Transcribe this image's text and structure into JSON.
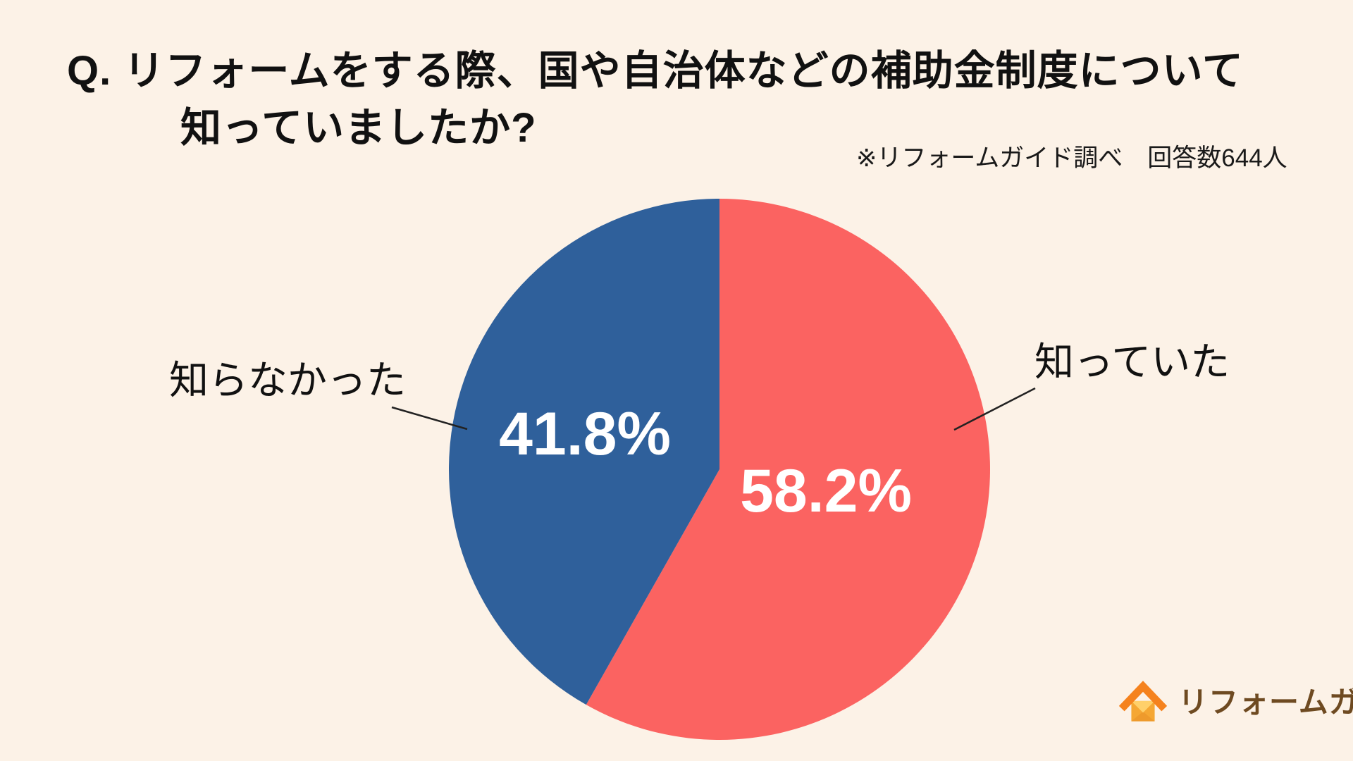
{
  "page": {
    "background_color": "#FCF2E7",
    "text_color": "#111111"
  },
  "title": {
    "line1": "Q. リフォームをする際、国や自治体などの補助金制度について",
    "line2": "知っていましたか?"
  },
  "note": {
    "text": "※リフォームガイド調べ　回答数644人",
    "survey_by": "リフォームガイド調べ",
    "respondents": "回答数644人",
    "respondent_count": 644
  },
  "chart_data": {
    "type": "pie",
    "title": "Q. リフォームをする際、国や自治体などの補助金制度について知っていましたか?",
    "source_note": "※リフォームガイド調べ　回答数644人",
    "unit": "%",
    "start_angle_deg": 0,
    "direction": "clockwise",
    "legend_position": "callout-labels",
    "slices": [
      {
        "label": "知っていた",
        "value": 58.2,
        "display": "58.2%",
        "color": "#FB6361"
      },
      {
        "label": "知らなかった",
        "value": 41.8,
        "display": "41.8%",
        "color": "#2F609B"
      }
    ],
    "value_label_color": "#FFFFFF"
  },
  "logo": {
    "text": "リフォームガイド",
    "text_color": "#6E4A21",
    "roof_color": "#F5821D",
    "envelope_base_color": "#F5A733",
    "envelope_flap_color": "#FFD06A",
    "envelope_shadow_color": "#EE9A2C"
  }
}
